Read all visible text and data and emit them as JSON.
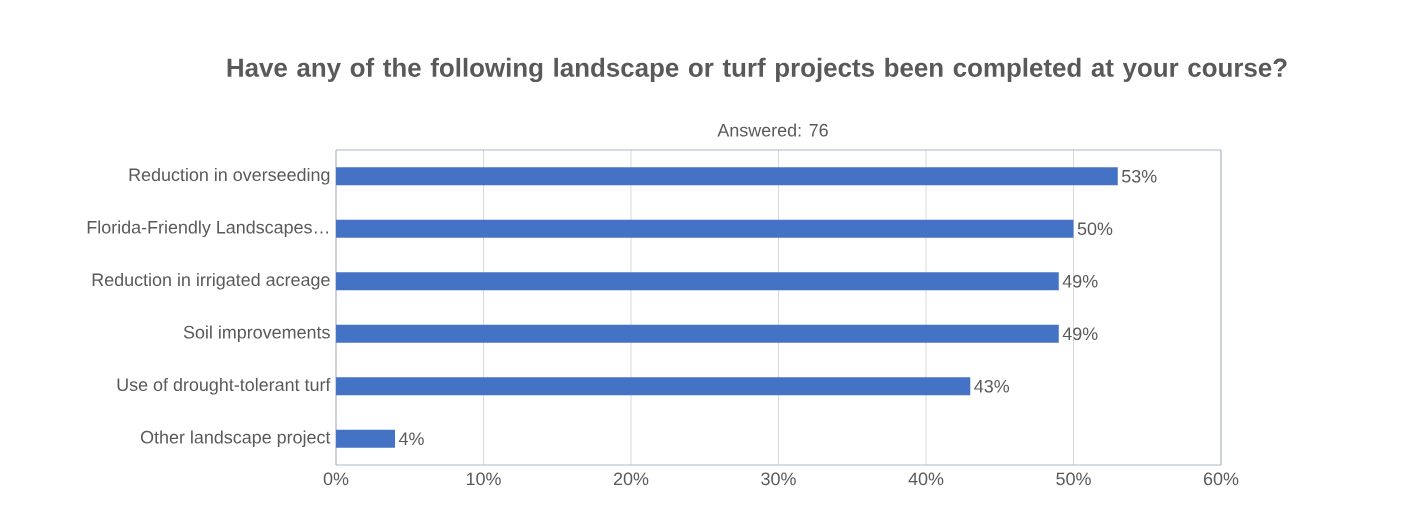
{
  "chart_data": {
    "type": "bar",
    "orientation": "horizontal",
    "title": "Have any of the following landscape or turf projects been completed at your course?",
    "subtitle": "Answered: 76",
    "categories": [
      "Reduction in overseeding",
      "Florida-Friendly Landscapes…",
      "Reduction in irrigated acreage",
      "Soil improvements",
      "Use of drought-tolerant turf",
      "Other landscape project"
    ],
    "values": [
      53,
      50,
      49,
      49,
      43,
      4
    ],
    "value_labels": [
      "53%",
      "50%",
      "49%",
      "49%",
      "43%",
      "4%"
    ],
    "color": "#4472c4",
    "xlim": [
      0,
      60
    ],
    "xticks": [
      {
        "value": 0,
        "label": "0%"
      },
      {
        "value": 10,
        "label": "10%"
      },
      {
        "value": 20,
        "label": "20%"
      },
      {
        "value": 30,
        "label": "30%"
      },
      {
        "value": 40,
        "label": "40%"
      },
      {
        "value": 50,
        "label": "50%"
      },
      {
        "value": 60,
        "label": "60%"
      }
    ],
    "grid": "x"
  }
}
